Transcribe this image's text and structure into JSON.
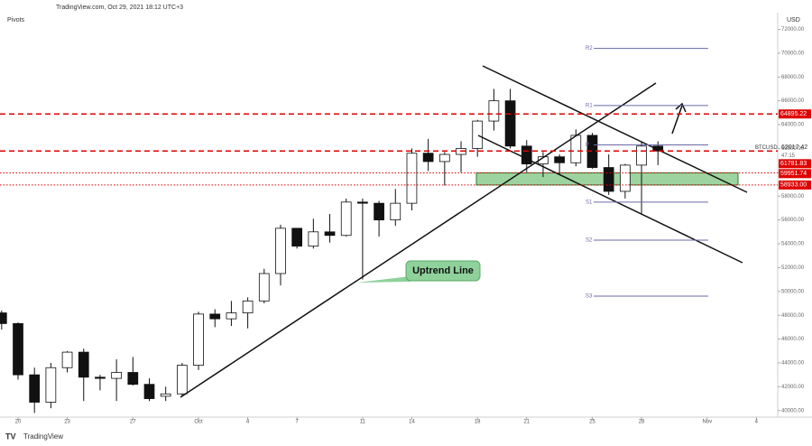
{
  "header": "TradingView.com, Oct 29, 2021 18:12 UTC+3",
  "indicator": "Pivots",
  "footer": "TradingView",
  "chart_data": {
    "type": "candlestick",
    "currency": "USD",
    "annotation": "Uptrend Line",
    "xlim": [
      -1.1,
      46.3
    ],
    "xticks": [
      {
        "value": 0,
        "label": "20"
      },
      {
        "value": 3,
        "label": "23"
      },
      {
        "value": 7,
        "label": "27"
      },
      {
        "value": 11,
        "label": "Oct"
      },
      {
        "value": 14,
        "label": "4"
      },
      {
        "value": 17,
        "label": "7"
      },
      {
        "value": 21,
        "label": "11"
      },
      {
        "value": 24,
        "label": "14"
      },
      {
        "value": 28,
        "label": "18"
      },
      {
        "value": 31,
        "label": "21"
      },
      {
        "value": 35,
        "label": "25"
      },
      {
        "value": 38,
        "label": "28"
      },
      {
        "value": 42,
        "label": "Nov"
      },
      {
        "value": 45,
        "label": "4"
      }
    ],
    "ylim": [
      39450,
      73400
    ],
    "yticks": [
      {
        "value": 40000,
        "label": "40000.00"
      },
      {
        "value": 42000,
        "label": "42000.00"
      },
      {
        "value": 44000,
        "label": "44000.00"
      },
      {
        "value": 46000,
        "label": "46000.00"
      },
      {
        "value": 48000,
        "label": "48000.00"
      },
      {
        "value": 50000,
        "label": "50000.00"
      },
      {
        "value": 52000,
        "label": "52000.00"
      },
      {
        "value": 54000,
        "label": "54000.00"
      },
      {
        "value": 56000,
        "label": "56000.00"
      },
      {
        "value": 58000,
        "label": "58000.00"
      },
      {
        "value": 60000,
        "label": "60000.00"
      },
      {
        "value": 62000,
        "label": "62000.00"
      },
      {
        "value": 64000,
        "label": "64000.00"
      },
      {
        "value": 66000,
        "label": "66000.00"
      },
      {
        "value": 68000,
        "label": "68000.00"
      },
      {
        "value": 70000,
        "label": "70000.00"
      },
      {
        "value": 72000,
        "label": "72000.00"
      }
    ],
    "x": [
      -1,
      0,
      1,
      2,
      3,
      4,
      5,
      6,
      7,
      8,
      9,
      10,
      11,
      12,
      13,
      14,
      15,
      16,
      17,
      18,
      19,
      20,
      21,
      22,
      23,
      24,
      25,
      26,
      27,
      28,
      29,
      30,
      31,
      32,
      33,
      34,
      35,
      36,
      37,
      38,
      39
    ],
    "open": [
      48200,
      47300,
      43000,
      40700,
      43600,
      44900,
      42800,
      42700,
      43200,
      42200,
      41200,
      41400,
      43800,
      48100,
      47700,
      48200,
      49200,
      51500,
      55300,
      53800,
      55000,
      54700,
      57500,
      57400,
      56000,
      57400,
      61600,
      60900,
      61500,
      62000,
      64300,
      66000,
      62200,
      60700,
      61300,
      60800,
      63100,
      60400,
      58400,
      60600,
      62200
    ],
    "high": [
      48400,
      47400,
      43600,
      44000,
      45000,
      45200,
      43000,
      44300,
      44500,
      42700,
      42000,
      44000,
      48300,
      48500,
      49200,
      49500,
      51900,
      55600,
      55300,
      56100,
      56500,
      57800,
      57800,
      57600,
      58600,
      62000,
      62800,
      61700,
      62600,
      64400,
      67000,
      67000,
      62700,
      61700,
      61500,
      63600,
      63300,
      61500,
      60700,
      62500,
      62600
    ],
    "low": [
      46800,
      42600,
      39800,
      40200,
      43200,
      40800,
      41700,
      40800,
      42100,
      40800,
      40800,
      41200,
      43400,
      47000,
      47100,
      46900,
      49000,
      50500,
      53600,
      53600,
      54100,
      54600,
      51000,
      54600,
      55500,
      56800,
      60100,
      58900,
      60000,
      61300,
      63500,
      62000,
      60000,
      59600,
      59800,
      60500,
      60300,
      58100,
      57800,
      56500,
      60600
    ],
    "close": [
      47300,
      43000,
      40700,
      43600,
      44900,
      42800,
      42700,
      43200,
      42200,
      41000,
      41400,
      43800,
      48100,
      47700,
      48200,
      49200,
      51500,
      55300,
      53800,
      55000,
      54700,
      57500,
      57400,
      56000,
      57400,
      61600,
      60900,
      61500,
      62000,
      64300,
      66000,
      62200,
      60700,
      61300,
      60800,
      63100,
      60400,
      58400,
      60600,
      62200,
      61782
    ],
    "up_color": "#ffffff",
    "down_color": "#111111",
    "pivots": [
      {
        "name": "R2",
        "value": 70400
      },
      {
        "name": "R1",
        "value": 65600
      },
      {
        "name": "P",
        "value": 62300
      },
      {
        "name": "S1",
        "value": 57500
      },
      {
        "name": "S2",
        "value": 54300
      },
      {
        "name": "S3",
        "value": 49600
      }
    ],
    "pivot_color": "#6a6aa8",
    "levels": [
      {
        "label": "64895.22",
        "value": 64895.22,
        "style": "dashed",
        "color": "#e00000"
      },
      {
        "label": "61781.83",
        "value": 61781.83,
        "style": "dashed",
        "color": "#e00000"
      },
      {
        "label": "59951.74",
        "value": 59951.74,
        "style": "dotted",
        "color": "#e00000"
      },
      {
        "label": "58933.00",
        "value": 58933,
        "style": "dotted",
        "color": "#e00000"
      }
    ],
    "last_price": {
      "symbol": "BTCUSD",
      "label": "62017.42",
      "countdown": "47:15"
    }
  }
}
